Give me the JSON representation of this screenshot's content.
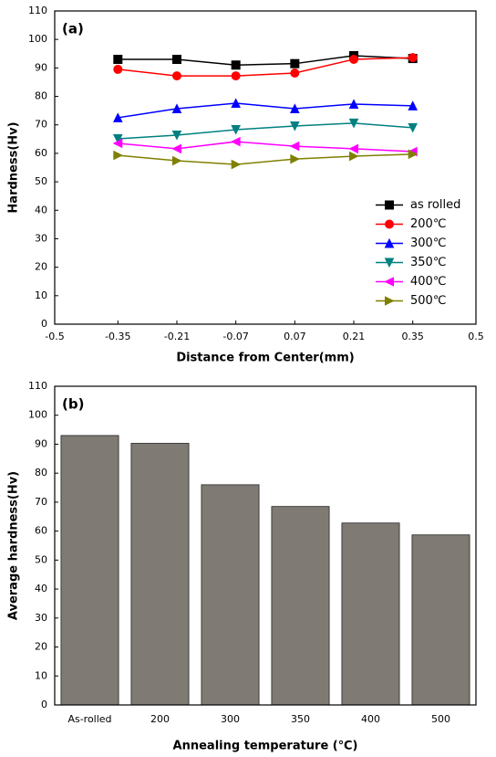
{
  "chart_data": [
    {
      "type": "line",
      "annotation": "(a)",
      "xlabel": "Distance from Center(mm)",
      "ylabel": "Hardness(Hv)",
      "x": [
        -0.35,
        -0.21,
        -0.07,
        0.07,
        0.21,
        0.35
      ],
      "xlim": [
        -0.5,
        0.5
      ],
      "xticks": [
        -0.5,
        -0.35,
        -0.21,
        -0.07,
        0.07,
        0.21,
        0.35,
        0.5
      ],
      "ylim": [
        0,
        110
      ],
      "yticks": [
        0,
        10,
        20,
        30,
        40,
        50,
        60,
        70,
        80,
        90,
        100,
        110
      ],
      "legend": "lower right",
      "series": [
        {
          "name": "as rolled",
          "color": "#000000",
          "marker": "square",
          "values": [
            93,
            93,
            91,
            91.5,
            94.3,
            93.3
          ]
        },
        {
          "name": "200℃",
          "color": "#ff0000",
          "marker": "circle",
          "values": [
            89.5,
            87.2,
            87.2,
            88.2,
            93,
            93.6
          ]
        },
        {
          "name": "300℃",
          "color": "#0000ff",
          "marker": "triangle-up",
          "values": [
            72.5,
            75.7,
            77.6,
            75.7,
            77.3,
            76.7
          ]
        },
        {
          "name": "350℃",
          "color": "#008080",
          "marker": "triangle-down",
          "values": [
            65.1,
            66.4,
            68.3,
            69.6,
            70.6,
            69
          ]
        },
        {
          "name": "400℃",
          "color": "#ff00ff",
          "marker": "triangle-left",
          "values": [
            63.5,
            61.6,
            64.1,
            62.5,
            61.6,
            60.6
          ]
        },
        {
          "name": "500℃",
          "color": "#808000",
          "marker": "triangle-right",
          "values": [
            59.3,
            57.4,
            56.1,
            58,
            59,
            59.7
          ]
        }
      ]
    },
    {
      "type": "bar",
      "annotation": "(b)",
      "xlabel": "Annealing temperature (℃)",
      "ylabel": "Average hardness(Hv)",
      "categories": [
        "As-rolled",
        "200",
        "300",
        "350",
        "400",
        "500"
      ],
      "values": [
        93,
        90.3,
        76,
        68.5,
        62.8,
        58.7
      ],
      "color": "#7f7b74",
      "ylim": [
        0,
        110
      ],
      "yticks": [
        0,
        10,
        20,
        30,
        40,
        50,
        60,
        70,
        80,
        90,
        100,
        110
      ]
    }
  ]
}
